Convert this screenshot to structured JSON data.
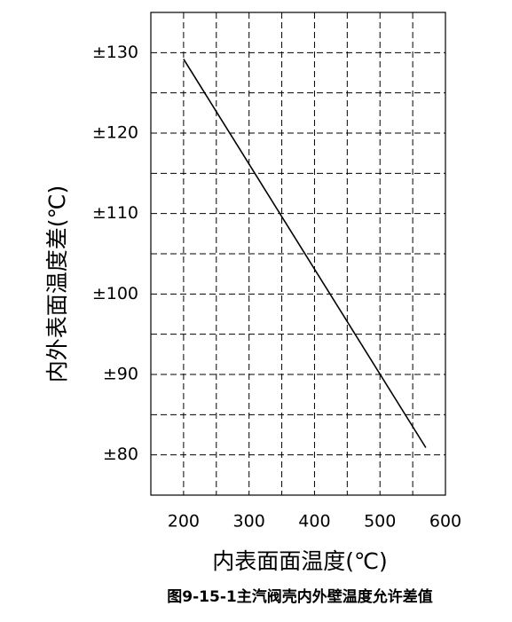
{
  "chart_data": {
    "type": "line",
    "title": "图9-15-1主汽阀壳内外壁温度允许差值",
    "x_label": "内表面面温度(℃)",
    "y_label": "内外表面温度差(℃)",
    "x": [
      200,
      570
    ],
    "series": [
      {
        "color": "#000000",
        "values": [
          129.2,
          80.9
        ]
      }
    ],
    "xlim": [
      150,
      600
    ],
    "ylim": [
      75,
      135
    ],
    "xticks": [
      200,
      300,
      400,
      500,
      600
    ],
    "yticks": [
      {
        "value": 80,
        "label": "±80"
      },
      {
        "value": 90,
        "label": "±90"
      },
      {
        "value": 100,
        "label": "±100"
      },
      {
        "value": 110,
        "label": "±110"
      },
      {
        "value": 120,
        "label": "±120"
      },
      {
        "value": 130,
        "label": "±130"
      }
    ],
    "xminorticks": [
      250,
      350,
      450,
      550
    ],
    "yminorticks": [
      85,
      95,
      105,
      115,
      125
    ],
    "grid": true
  }
}
